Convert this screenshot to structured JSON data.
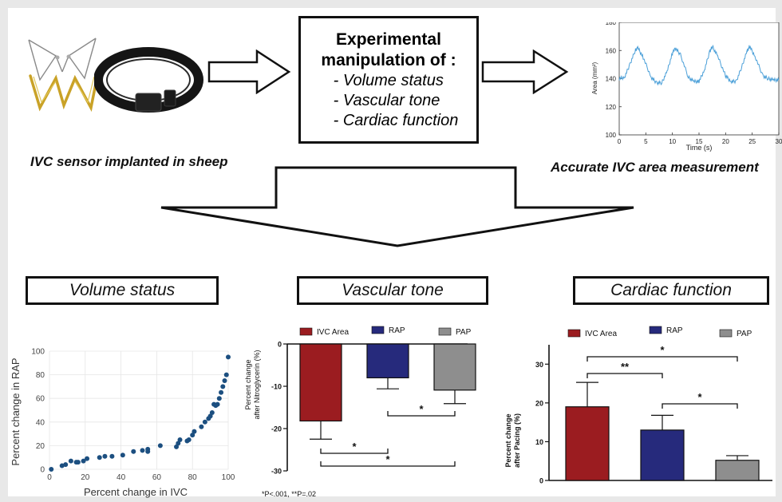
{
  "top": {
    "sensor_caption": "IVC sensor implanted in sheep",
    "measurement_caption": "Accurate IVC area measurement",
    "manipulation": {
      "title_line1": "Experimental",
      "title_line2": "manipulation of :",
      "items": [
        "- Volume status",
        "- Vascular tone",
        "- Cardiac function"
      ]
    },
    "area_chart": {
      "ylabel": "Area (mm²)",
      "xlabel": "Time (s)",
      "yticks": [
        "100",
        "120",
        "140",
        "160",
        "180"
      ],
      "xticks": [
        "0",
        "5",
        "10",
        "15",
        "20",
        "25",
        "30"
      ],
      "color": "#4a9fd8"
    }
  },
  "sections": {
    "volume": "Volume status",
    "vascular": "Vascular tone",
    "cardiac": "Cardiac function"
  },
  "footnote": "*P<.001, **P=.02",
  "chart_data": [
    {
      "type": "line",
      "xlabel": "Time (s)",
      "ylabel": "Area (mm²)",
      "xlim": [
        0,
        30
      ],
      "ylim": [
        100,
        180
      ],
      "series": [
        {
          "x": [
            0,
            1,
            2,
            3,
            3.5,
            4.5,
            6,
            7,
            8,
            9,
            10,
            10.5,
            11.5,
            13,
            14,
            15,
            16,
            17,
            17.5,
            18.5,
            20,
            21,
            22,
            23,
            24,
            24.5,
            25.5,
            27,
            28,
            29,
            30
          ],
          "y": [
            140,
            141,
            150,
            160,
            162,
            155,
            141,
            137,
            137,
            145,
            158,
            162,
            157,
            141,
            138,
            138,
            146,
            159,
            163,
            156,
            142,
            138,
            138,
            148,
            159,
            163,
            156,
            142,
            140,
            139,
            139
          ]
        }
      ]
    },
    {
      "type": "scatter",
      "xlabel": "Percent change in IVC",
      "ylabel": "Percent change in RAP",
      "xlim": [
        0,
        100
      ],
      "ylim": [
        0,
        100
      ],
      "xticks": [
        "0",
        "20",
        "40",
        "60",
        "80",
        "100"
      ],
      "yticks": [
        "0",
        "20",
        "40",
        "60",
        "80",
        "100"
      ],
      "color": "#1c4f80",
      "x": [
        1,
        7,
        9,
        12,
        15,
        16,
        19,
        21,
        28,
        31,
        35,
        41,
        47,
        52,
        55,
        55,
        62,
        71,
        72,
        73,
        77,
        78,
        80,
        81,
        85,
        87,
        89,
        90,
        91,
        92,
        93,
        94,
        95,
        96,
        97,
        98,
        99,
        100
      ],
      "y": [
        0,
        3,
        4,
        7,
        6,
        6,
        7,
        9,
        10,
        11,
        11,
        12,
        15,
        16,
        15,
        17,
        20,
        19,
        22,
        25,
        24,
        25,
        29,
        32,
        36,
        40,
        43,
        45,
        48,
        55,
        54,
        55,
        60,
        65,
        70,
        75,
        80,
        95
      ]
    },
    {
      "type": "bar",
      "ylabel": "Percent change after Nitroglycerin (%)",
      "ylim": [
        -30,
        0
      ],
      "yticks": [
        "0",
        "-10",
        "-20",
        "-30"
      ],
      "series": [
        {
          "name": "IVC Area",
          "value": -18.2,
          "err": 4.3,
          "color": "#9b1c20"
        },
        {
          "name": "RAP",
          "value": -8.0,
          "err": 2.6,
          "color": "#262a7c"
        },
        {
          "name": "PAP",
          "value": -10.9,
          "err": 3.2,
          "color": "#8e8e8e"
        }
      ],
      "annotations": [
        "*",
        "*",
        "*"
      ]
    },
    {
      "type": "bar",
      "ylabel": "Percent change after Pacing (%)",
      "ylim": [
        0,
        35
      ],
      "yticks": [
        "0",
        "10",
        "20",
        "30"
      ],
      "series": [
        {
          "name": "IVC Area",
          "value": 19.0,
          "err": 6.3,
          "color": "#9b1c20"
        },
        {
          "name": "RAP",
          "value": 13.0,
          "err": 3.8,
          "color": "#262a7c"
        },
        {
          "name": "PAP",
          "value": 5.2,
          "err": 1.2,
          "color": "#8e8e8e"
        }
      ],
      "annotations": [
        "**",
        "*",
        "*"
      ]
    }
  ]
}
